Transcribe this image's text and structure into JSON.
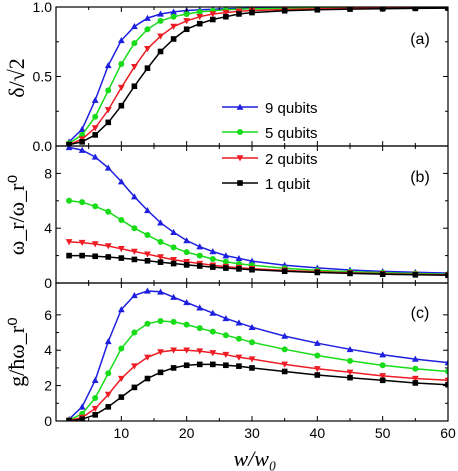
{
  "chart_data": {
    "type": "line",
    "xlabel": "w/w₀",
    "xlim": [
      0,
      60
    ],
    "xticks": [
      10,
      20,
      30,
      40,
      50,
      60
    ],
    "colors": {
      "9 qubits": "#1f1fe0",
      "5 qubits": "#18dc18",
      "2 qubits": "#ee1c24",
      "1 qubit": "#000000"
    },
    "markers": {
      "9 qubits": "triangle-up",
      "5 qubits": "circle",
      "2 qubits": "triangle-down",
      "1 qubit": "square"
    },
    "legend": [
      "9 qubits",
      "5 qubits",
      "2 qubits",
      "1 qubit"
    ],
    "legend_placement": "center-right spanning panels (a) and (b)",
    "panels": [
      {
        "label": "(a)",
        "ylabel": "δ/√2",
        "ylim": [
          0,
          1.0
        ],
        "yticks": [
          0.0,
          0.5,
          1.0
        ],
        "x": [
          2,
          4,
          6,
          8,
          10,
          12,
          14,
          16,
          18,
          20,
          22,
          24,
          26,
          28,
          30,
          35,
          40,
          45,
          50,
          55,
          60
        ],
        "series": [
          {
            "name": "9 qubits",
            "values": [
              0.03,
              0.12,
              0.33,
              0.58,
              0.76,
              0.86,
              0.92,
              0.95,
              0.965,
              0.975,
              0.98,
              0.984,
              0.987,
              0.99,
              0.991,
              0.993,
              0.995,
              0.996,
              0.997,
              0.998,
              0.998
            ]
          },
          {
            "name": "5 qubits",
            "values": [
              0.02,
              0.08,
              0.21,
              0.4,
              0.59,
              0.74,
              0.84,
              0.9,
              0.93,
              0.95,
              0.965,
              0.973,
              0.98,
              0.984,
              0.987,
              0.99,
              0.992,
              0.994,
              0.995,
              0.996,
              0.997
            ]
          },
          {
            "name": "2 qubits",
            "values": [
              0.01,
              0.05,
              0.13,
              0.26,
              0.42,
              0.57,
              0.7,
              0.79,
              0.86,
              0.9,
              0.93,
              0.95,
              0.96,
              0.97,
              0.975,
              0.982,
              0.987,
              0.99,
              0.992,
              0.993,
              0.994
            ]
          },
          {
            "name": "1 qubit",
            "values": [
              0.01,
              0.03,
              0.08,
              0.17,
              0.29,
              0.43,
              0.56,
              0.68,
              0.77,
              0.84,
              0.88,
              0.91,
              0.93,
              0.95,
              0.96,
              0.973,
              0.98,
              0.985,
              0.988,
              0.99,
              0.992
            ]
          }
        ]
      },
      {
        "label": "(b)",
        "ylabel": "ω_r/ω_r⁰",
        "ylim": [
          0,
          10
        ],
        "yticks": [
          0,
          4,
          8
        ],
        "x": [
          2,
          4,
          6,
          8,
          10,
          12,
          14,
          16,
          18,
          20,
          22,
          24,
          26,
          28,
          30,
          35,
          40,
          45,
          50,
          55,
          60
        ],
        "series": [
          {
            "name": "9 qubits",
            "values": [
              9.9,
              9.7,
              9.2,
              8.4,
              7.4,
              6.3,
              5.3,
              4.4,
              3.7,
              3.1,
              2.65,
              2.3,
              2.0,
              1.8,
              1.6,
              1.3,
              1.1,
              0.95,
              0.85,
              0.78,
              0.72
            ]
          },
          {
            "name": "5 qubits",
            "values": [
              6.0,
              5.9,
              5.6,
              5.2,
              4.6,
              4.0,
              3.5,
              3.0,
              2.6,
              2.25,
              2.0,
              1.75,
              1.55,
              1.4,
              1.3,
              1.08,
              0.92,
              0.82,
              0.75,
              0.69,
              0.64
            ]
          },
          {
            "name": "2 qubits",
            "values": [
              3.0,
              2.95,
              2.85,
              2.7,
              2.5,
              2.3,
              2.1,
              1.9,
              1.7,
              1.55,
              1.42,
              1.3,
              1.2,
              1.12,
              1.05,
              0.92,
              0.82,
              0.74,
              0.68,
              0.63,
              0.59
            ]
          },
          {
            "name": "1 qubit",
            "values": [
              2.0,
              2.0,
              1.95,
              1.9,
              1.82,
              1.72,
              1.62,
              1.52,
              1.42,
              1.32,
              1.24,
              1.16,
              1.09,
              1.03,
              0.97,
              0.86,
              0.77,
              0.7,
              0.64,
              0.6,
              0.56
            ]
          }
        ]
      },
      {
        "label": "(c)",
        "ylabel": "g/ħω_r⁰",
        "ylim": [
          0,
          7.8
        ],
        "yticks": [
          0,
          2,
          4,
          6
        ],
        "x": [
          2,
          4,
          6,
          8,
          10,
          12,
          14,
          16,
          18,
          20,
          22,
          24,
          26,
          28,
          30,
          35,
          40,
          45,
          50,
          55,
          60
        ],
        "series": [
          {
            "name": "9 qubits",
            "values": [
              0.1,
              0.8,
              2.3,
              4.5,
              6.3,
              7.1,
              7.35,
              7.3,
              7.0,
              6.7,
              6.4,
              6.1,
              5.8,
              5.55,
              5.3,
              4.8,
              4.4,
              4.05,
              3.75,
              3.5,
              3.3
            ]
          },
          {
            "name": "5 qubits",
            "values": [
              0.05,
              0.4,
              1.3,
              2.7,
              4.1,
              5.0,
              5.5,
              5.65,
              5.6,
              5.45,
              5.25,
              5.05,
              4.85,
              4.65,
              4.45,
              4.05,
              3.7,
              3.4,
              3.15,
              2.95,
              2.8
            ]
          },
          {
            "name": "2 qubits",
            "values": [
              0.03,
              0.2,
              0.7,
              1.5,
              2.4,
              3.1,
              3.6,
              3.9,
              4.0,
              4.0,
              3.95,
              3.85,
              3.75,
              3.6,
              3.5,
              3.2,
              2.95,
              2.75,
              2.55,
              2.4,
              2.3
            ]
          },
          {
            "name": "1 qubit",
            "values": [
              0.02,
              0.1,
              0.35,
              0.8,
              1.35,
              1.9,
              2.4,
              2.75,
              3.0,
              3.15,
              3.2,
              3.2,
              3.15,
              3.1,
              3.0,
              2.8,
              2.6,
              2.45,
              2.3,
              2.15,
              2.05
            ]
          }
        ]
      }
    ]
  }
}
